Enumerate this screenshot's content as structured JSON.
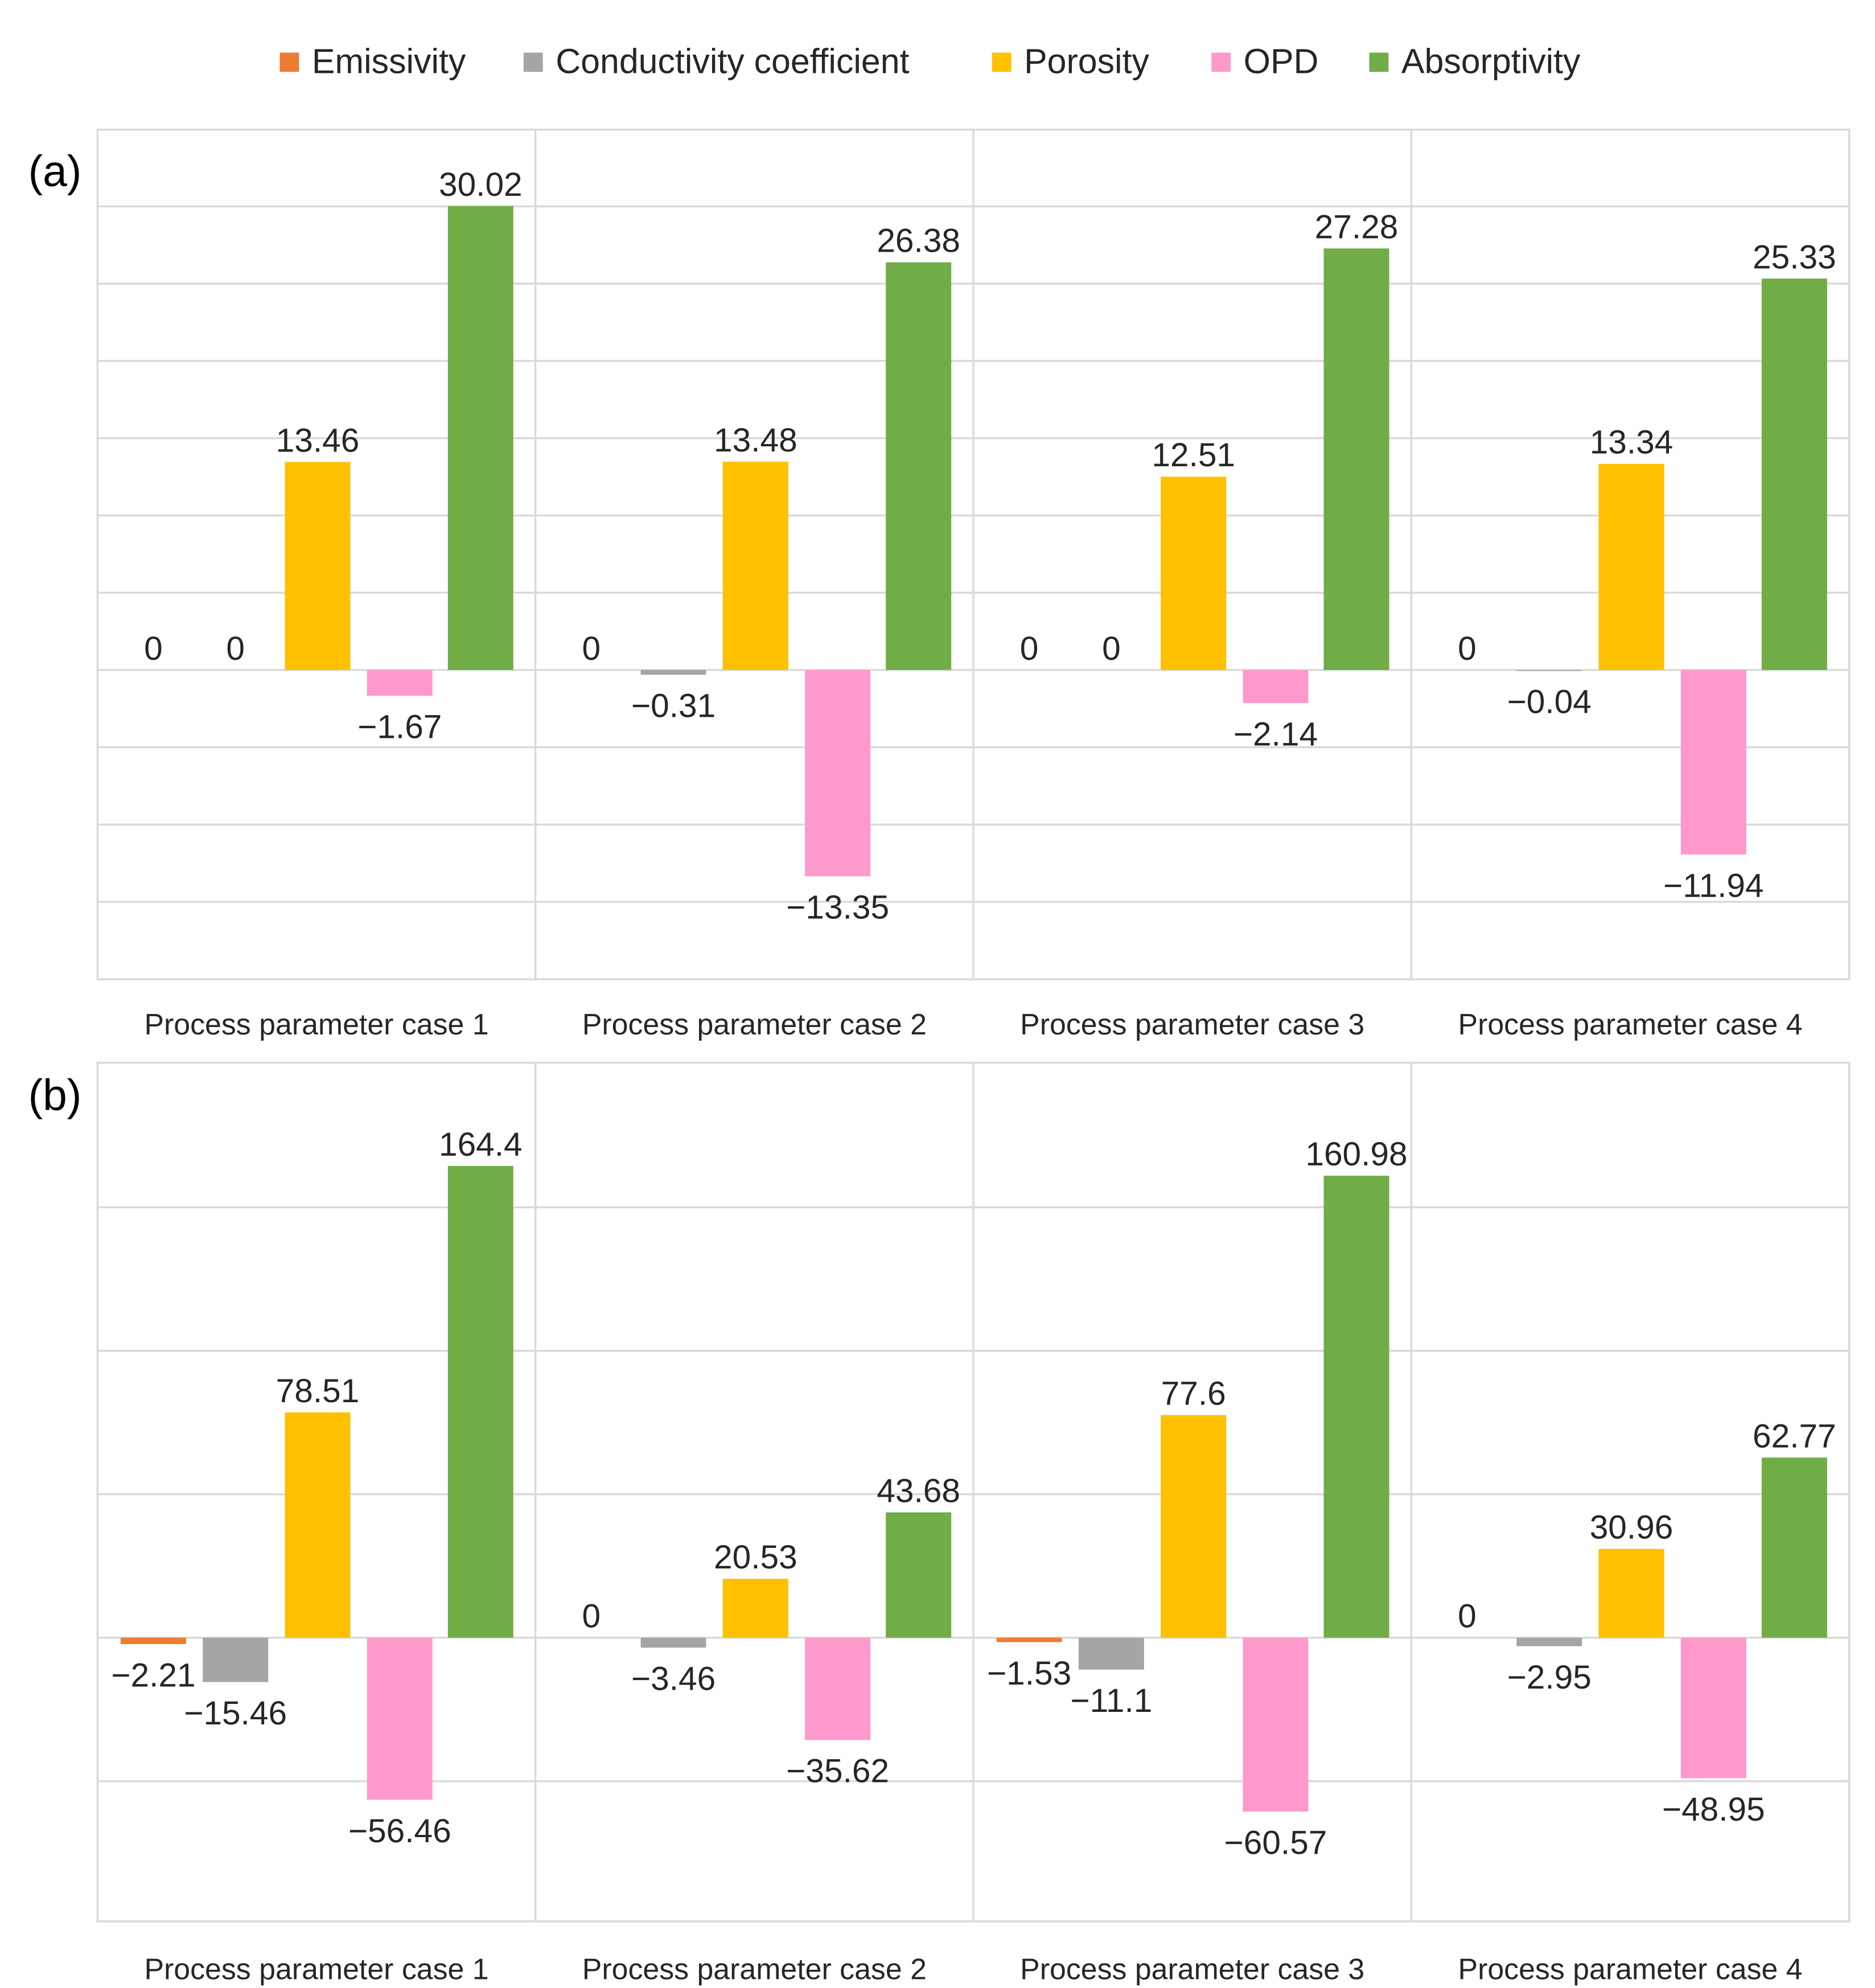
{
  "chart_data": [
    {
      "type": "bar",
      "panel_label": "(a)",
      "categories": [
        "Process parameter case 1",
        "Process parameter case 2",
        "Process parameter case 3",
        "Process parameter case 4"
      ],
      "series": [
        {
          "name": "Emissivity",
          "values": [
            0,
            0,
            0,
            0
          ]
        },
        {
          "name": "Conductivity coefficient",
          "values": [
            0,
            -0.31,
            0,
            -0.04
          ]
        },
        {
          "name": "Porosity",
          "values": [
            13.46,
            13.48,
            12.51,
            13.34
          ]
        },
        {
          "name": "OPD",
          "values": [
            -1.67,
            -13.35,
            -2.14,
            -11.94
          ]
        },
        {
          "name": "Absorptivity",
          "values": [
            30.02,
            26.38,
            27.28,
            25.33
          ]
        }
      ],
      "labels": [
        [
          "0",
          "0",
          "0",
          "0"
        ],
        [
          "0",
          "−0.31",
          "0",
          "−0.04"
        ],
        [
          "13.46",
          "13.48",
          "12.51",
          "13.34"
        ],
        [
          "−1.67",
          "−13.35",
          "−2.14",
          "−11.94"
        ],
        [
          "30.02",
          "26.38",
          "27.28",
          "25.33"
        ]
      ],
      "ylim": [
        -20,
        35
      ],
      "grid_step": 5,
      "xlabel": "",
      "ylabel": ""
    },
    {
      "type": "bar",
      "panel_label": "(b)",
      "categories": [
        "Process parameter case 1",
        "Process parameter case 2",
        "Process parameter case 3",
        "Process parameter case 4"
      ],
      "series": [
        {
          "name": "Emissivity",
          "values": [
            -2.21,
            0,
            -1.53,
            0
          ]
        },
        {
          "name": "Conductivity coefficient",
          "values": [
            -15.46,
            -3.46,
            -11.1,
            -2.95
          ]
        },
        {
          "name": "Porosity",
          "values": [
            78.51,
            20.53,
            77.6,
            30.96
          ]
        },
        {
          "name": "OPD",
          "values": [
            -56.46,
            -35.62,
            -60.57,
            -48.95
          ]
        },
        {
          "name": "Absorptivity",
          "values": [
            164.4,
            43.68,
            160.98,
            62.77
          ]
        }
      ],
      "labels": [
        [
          "−2.21",
          "0",
          "−1.53",
          "0"
        ],
        [
          "−15.46",
          "−3.46",
          "−11.1",
          "−2.95"
        ],
        [
          "78.51",
          "20.53",
          "77.6",
          "30.96"
        ],
        [
          "−56.46",
          "−35.62",
          "−60.57",
          "−48.95"
        ],
        [
          "164.4",
          "43.68",
          "160.98",
          "62.77"
        ]
      ],
      "ylim": [
        -100,
        200
      ],
      "grid_step": 50,
      "xlabel": "",
      "ylabel": ""
    }
  ],
  "legend": {
    "position": "top-center",
    "items": [
      {
        "name": "Emissivity",
        "color": "#ED7D31"
      },
      {
        "name": "Conductivity coefficient",
        "color": "#A5A5A5"
      },
      {
        "name": "Porosity",
        "color": "#FFC000"
      },
      {
        "name": "OPD",
        "color": "#FF99CC"
      },
      {
        "name": "Absorptivity",
        "color": "#70AD47"
      }
    ]
  },
  "colors": {
    "grid": "#D9D9D9",
    "text": "#262626"
  }
}
